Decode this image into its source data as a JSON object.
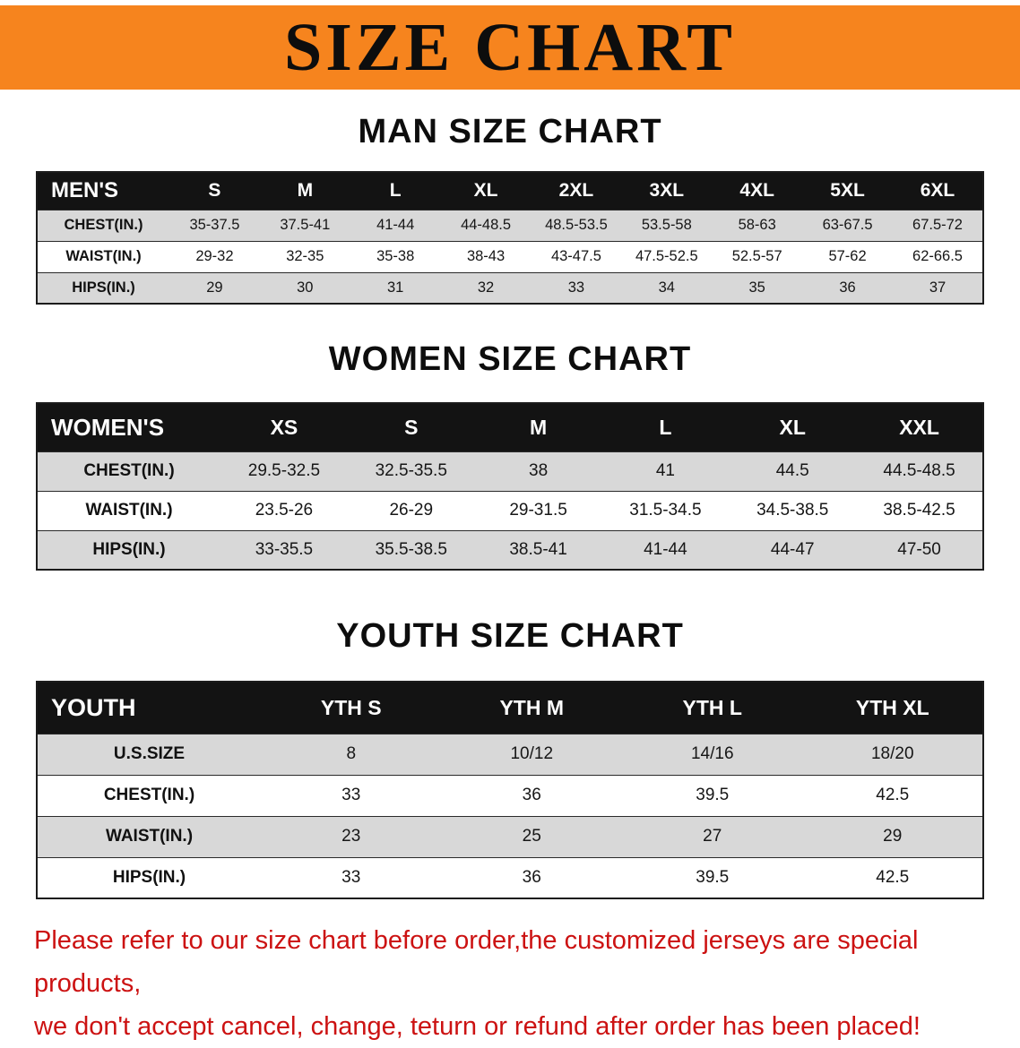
{
  "banner": {
    "title": "SIZE CHART",
    "bg_color": "#f6841e",
    "text_color": "#0d0d0d"
  },
  "colors": {
    "table_header_bg": "#131313",
    "row_stripe_gray": "#d8d8d8",
    "disclaimer_red": "#cc1212"
  },
  "sections": [
    {
      "heading": "MAN SIZE CHART",
      "table": {
        "header": [
          "MEN'S",
          "S",
          "M",
          "L",
          "XL",
          "2XL",
          "3XL",
          "4XL",
          "5XL",
          "6XL"
        ],
        "rows": [
          [
            "CHEST(IN.)",
            "35-37.5",
            "37.5-41",
            "41-44",
            "44-48.5",
            "48.5-53.5",
            "53.5-58",
            "58-63",
            "63-67.5",
            "67.5-72"
          ],
          [
            "WAIST(IN.)",
            "29-32",
            "32-35",
            "35-38",
            "38-43",
            "43-47.5",
            "47.5-52.5",
            "52.5-57",
            "57-62",
            "62-66.5"
          ],
          [
            "HIPS(IN.)",
            "29",
            "30",
            "31",
            "32",
            "33",
            "34",
            "35",
            "36",
            "37"
          ]
        ]
      }
    },
    {
      "heading": "WOMEN SIZE CHART",
      "table": {
        "header": [
          "WOMEN'S",
          "XS",
          "S",
          "M",
          "L",
          "XL",
          "XXL"
        ],
        "rows": [
          [
            "CHEST(IN.)",
            "29.5-32.5",
            "32.5-35.5",
            "38",
            "41",
            "44.5",
            "44.5-48.5"
          ],
          [
            "WAIST(IN.)",
            "23.5-26",
            "26-29",
            "29-31.5",
            "31.5-34.5",
            "34.5-38.5",
            "38.5-42.5"
          ],
          [
            "HIPS(IN.)",
            "33-35.5",
            "35.5-38.5",
            "38.5-41",
            "41-44",
            "44-47",
            "47-50"
          ]
        ]
      }
    },
    {
      "heading": "YOUTH SIZE CHART",
      "table": {
        "header": [
          "YOUTH",
          "YTH S",
          "YTH M",
          "YTH L",
          "YTH XL"
        ],
        "rows": [
          [
            "U.S.SIZE",
            "8",
            "10/12",
            "14/16",
            "18/20"
          ],
          [
            "CHEST(IN.)",
            "33",
            "36",
            "39.5",
            "42.5"
          ],
          [
            "WAIST(IN.)",
            "23",
            "25",
            "27",
            "29"
          ],
          [
            "HIPS(IN.)",
            "33",
            "36",
            "39.5",
            "42.5"
          ]
        ]
      }
    }
  ],
  "footer": {
    "line1": "Please refer to our size chart before order,the customized jerseys are special products,",
    "line2": "we don't accept cancel, change, teturn or refund after order has been placed!"
  }
}
